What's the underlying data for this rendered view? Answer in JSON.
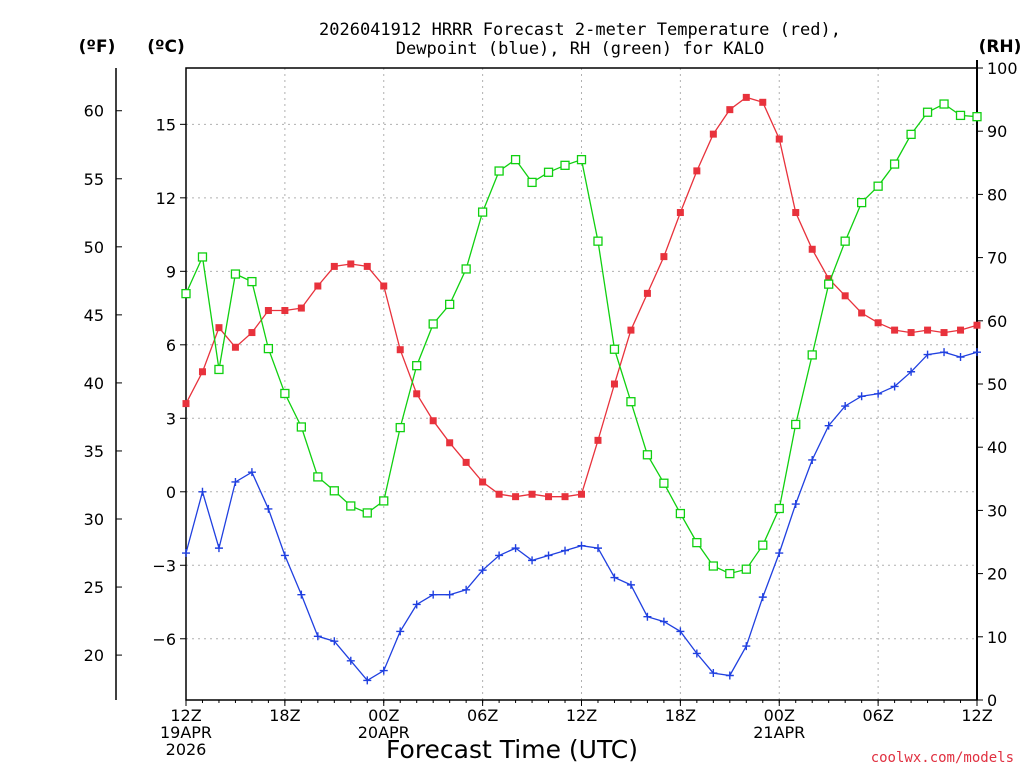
{
  "title_line1": "2026041912 HRRR Forecast 2-meter Temperature (red),",
  "title_line2": "Dewpoint (blue), RH (green) for KALO",
  "units": {
    "f": "(ºF)",
    "c": "(ºC)",
    "rh": "(RH)"
  },
  "xlabel": "Forecast Time (UTC)",
  "credit": "coolwx.com/models",
  "colors": {
    "temperature": "#e8323c",
    "dewpoint": "#2040e0",
    "rh": "#10d010",
    "grid": "#b0b0b0"
  },
  "chart_data": {
    "type": "line",
    "x_hours": [
      0,
      1,
      2,
      3,
      4,
      5,
      6,
      7,
      8,
      9,
      10,
      11,
      12,
      13,
      14,
      15,
      16,
      17,
      18,
      19,
      20,
      21,
      22,
      23,
      24,
      25,
      26,
      27,
      28,
      29,
      30,
      31,
      32,
      33,
      34,
      35,
      36,
      37,
      38,
      39,
      40,
      41,
      42,
      43,
      44,
      45,
      46,
      47,
      48
    ],
    "x_ticks": [
      {
        "hour": 0,
        "lines": [
          "12Z",
          "19APR",
          "2026"
        ]
      },
      {
        "hour": 6,
        "lines": [
          "18Z"
        ]
      },
      {
        "hour": 12,
        "lines": [
          "00Z",
          "20APR"
        ]
      },
      {
        "hour": 18,
        "lines": [
          "06Z"
        ]
      },
      {
        "hour": 24,
        "lines": [
          "12Z"
        ]
      },
      {
        "hour": 30,
        "lines": [
          "18Z"
        ]
      },
      {
        "hour": 36,
        "lines": [
          "00Z",
          "21APR"
        ]
      },
      {
        "hour": 42,
        "lines": [
          "06Z"
        ]
      },
      {
        "hour": 48,
        "lines": [
          "12Z"
        ]
      }
    ],
    "y_celsius_range": [
      -8.5,
      17.3
    ],
    "y_celsius_ticks": [
      -6,
      -3,
      0,
      3,
      6,
      9,
      12,
      15
    ],
    "y_fahrenheit_ticks": [
      20,
      25,
      30,
      35,
      40,
      45,
      50,
      55,
      60
    ],
    "y_rh_range": [
      0,
      100
    ],
    "y_rh_ticks": [
      0,
      10,
      20,
      30,
      40,
      50,
      60,
      70,
      80,
      90,
      100
    ],
    "grid": true,
    "series": [
      {
        "name": "Temperature",
        "axis": "celsius",
        "marker": "filled-square",
        "values": [
          3.6,
          4.9,
          6.7,
          5.9,
          6.5,
          7.4,
          7.4,
          7.5,
          8.4,
          9.2,
          9.3,
          9.2,
          8.4,
          5.8,
          4.0,
          2.9,
          2.0,
          1.2,
          0.4,
          -0.1,
          -0.2,
          -0.1,
          -0.2,
          -0.2,
          -0.1,
          2.1,
          4.4,
          6.6,
          8.1,
          9.6,
          11.4,
          13.1,
          14.6,
          15.6,
          16.1,
          15.9,
          14.4,
          11.4,
          9.9,
          8.7,
          8.0,
          7.3,
          6.9,
          6.6,
          6.5,
          6.6,
          6.5,
          6.6,
          6.8
        ]
      },
      {
        "name": "Dewpoint",
        "axis": "celsius",
        "marker": "plus",
        "values": [
          -2.5,
          0.0,
          -2.3,
          0.4,
          0.8,
          -0.7,
          -2.6,
          -4.2,
          -5.9,
          -6.1,
          -6.9,
          -7.7,
          -7.3,
          -5.7,
          -4.6,
          -4.2,
          -4.2,
          -4.0,
          -3.2,
          -2.6,
          -2.3,
          -2.8,
          -2.6,
          -2.4,
          -2.2,
          -2.3,
          -3.5,
          -3.8,
          -5.1,
          -5.3,
          -5.7,
          -6.6,
          -7.4,
          -7.5,
          -6.3,
          -4.3,
          -2.5,
          -0.5,
          1.3,
          2.7,
          3.5,
          3.9,
          4.0,
          4.3,
          4.9,
          5.6,
          5.7,
          5.5,
          5.7
        ]
      },
      {
        "name": "RH",
        "axis": "rh",
        "marker": "open-square",
        "values": [
          64.3,
          70.1,
          52.3,
          67.4,
          66.2,
          55.6,
          48.5,
          43.2,
          35.3,
          33.1,
          30.7,
          29.6,
          31.5,
          43.1,
          52.9,
          59.5,
          62.6,
          68.2,
          77.2,
          83.7,
          85.5,
          81.9,
          83.5,
          84.6,
          85.5,
          72.6,
          55.5,
          47.2,
          38.8,
          34.3,
          29.5,
          24.9,
          21.2,
          20.0,
          20.7,
          24.5,
          30.3,
          43.6,
          54.6,
          65.8,
          72.6,
          78.7,
          81.3,
          84.8,
          89.5,
          93.0,
          94.3,
          92.5,
          92.3
        ]
      }
    ]
  }
}
